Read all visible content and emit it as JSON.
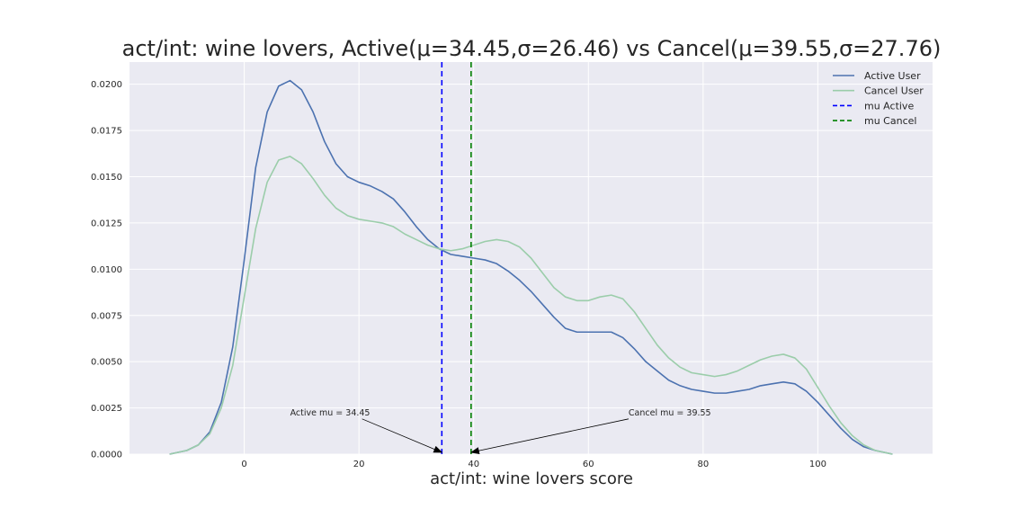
{
  "chart_data": {
    "type": "line",
    "title": "act/int: wine lovers, Active(μ=34.45,σ=26.46) vs Cancel(μ=39.55,σ=27.76)",
    "xlabel": "act/int: wine lovers score",
    "ylabel": "",
    "xlim": [
      -20,
      120
    ],
    "ylim": [
      0,
      0.0212
    ],
    "xticks": [
      0,
      20,
      40,
      60,
      80,
      100
    ],
    "yticks": [
      0.0,
      0.0025,
      0.005,
      0.0075,
      0.01,
      0.0125,
      0.015,
      0.0175,
      0.02
    ],
    "ytick_labels": [
      "0.0000",
      "0.0025",
      "0.0050",
      "0.0075",
      "0.0100",
      "0.0125",
      "0.0150",
      "0.0175",
      "0.0200"
    ],
    "grid": true,
    "legend_position": "top-right",
    "series": [
      {
        "name": "Active User",
        "color": "#4c72b0",
        "style": "solid",
        "x": [
          -13,
          -10,
          -8,
          -6,
          -4,
          -2,
          0,
          2,
          4,
          6,
          8,
          10,
          12,
          14,
          16,
          18,
          20,
          22,
          24,
          26,
          28,
          30,
          32,
          34,
          36,
          38,
          40,
          42,
          44,
          46,
          48,
          50,
          52,
          54,
          56,
          58,
          60,
          62,
          64,
          66,
          68,
          70,
          72,
          74,
          76,
          78,
          80,
          82,
          84,
          86,
          88,
          90,
          92,
          94,
          96,
          98,
          100,
          102,
          104,
          106,
          108,
          110,
          113
        ],
        "y": [
          0.0,
          0.0002,
          0.0005,
          0.0012,
          0.0028,
          0.0058,
          0.0105,
          0.0155,
          0.0185,
          0.0199,
          0.0202,
          0.0197,
          0.0185,
          0.0169,
          0.0157,
          0.015,
          0.0147,
          0.0145,
          0.0142,
          0.0138,
          0.0131,
          0.0123,
          0.0116,
          0.0111,
          0.0108,
          0.0107,
          0.0106,
          0.0105,
          0.0103,
          0.0099,
          0.0094,
          0.0088,
          0.0081,
          0.0074,
          0.0068,
          0.0066,
          0.0066,
          0.0066,
          0.0066,
          0.0063,
          0.0057,
          0.005,
          0.0045,
          0.004,
          0.0037,
          0.0035,
          0.0034,
          0.0033,
          0.0033,
          0.0034,
          0.0035,
          0.0037,
          0.0038,
          0.0039,
          0.0038,
          0.0034,
          0.0028,
          0.0021,
          0.0014,
          0.0008,
          0.0004,
          0.0002,
          0.0
        ]
      },
      {
        "name": "Cancel User",
        "color": "#9bcdaa",
        "style": "solid",
        "x": [
          -13,
          -10,
          -8,
          -6,
          -4,
          -2,
          0,
          2,
          4,
          6,
          8,
          10,
          12,
          14,
          16,
          18,
          20,
          22,
          24,
          26,
          28,
          30,
          32,
          34,
          36,
          38,
          40,
          42,
          44,
          46,
          48,
          50,
          52,
          54,
          56,
          58,
          60,
          62,
          64,
          66,
          68,
          70,
          72,
          74,
          76,
          78,
          80,
          82,
          84,
          86,
          88,
          90,
          92,
          94,
          96,
          98,
          100,
          102,
          104,
          106,
          108,
          110,
          113
        ],
        "y": [
          0.0,
          0.0002,
          0.0005,
          0.0011,
          0.0025,
          0.0048,
          0.0085,
          0.0122,
          0.0147,
          0.0159,
          0.0161,
          0.0157,
          0.0149,
          0.014,
          0.0133,
          0.0129,
          0.0127,
          0.0126,
          0.0125,
          0.0123,
          0.0119,
          0.0116,
          0.0113,
          0.0111,
          0.011,
          0.0111,
          0.0113,
          0.0115,
          0.0116,
          0.0115,
          0.0112,
          0.0106,
          0.0098,
          0.009,
          0.0085,
          0.0083,
          0.0083,
          0.0085,
          0.0086,
          0.0084,
          0.0077,
          0.0068,
          0.0059,
          0.0052,
          0.0047,
          0.0044,
          0.0043,
          0.0042,
          0.0043,
          0.0045,
          0.0048,
          0.0051,
          0.0053,
          0.0054,
          0.0052,
          0.0046,
          0.0036,
          0.0026,
          0.0017,
          0.001,
          0.0005,
          0.0002,
          0.0
        ]
      }
    ],
    "vlines": [
      {
        "name": "mu Active",
        "x": 34.45,
        "color": "#0000ff",
        "style": "dashed"
      },
      {
        "name": "mu Cancel",
        "x": 39.55,
        "color": "#008000",
        "style": "dashed"
      }
    ],
    "legend": [
      "Active User",
      "Cancel User",
      "mu Active",
      "mu Cancel"
    ],
    "annotations": [
      {
        "text": "Active mu = 34.45",
        "text_xy": [
          8,
          0.0021
        ],
        "arrow_to": [
          34.45,
          0.0
        ]
      },
      {
        "text": "Cancel mu = 39.55",
        "text_xy": [
          67,
          0.0021
        ],
        "arrow_to": [
          39.55,
          0.0
        ]
      }
    ]
  }
}
